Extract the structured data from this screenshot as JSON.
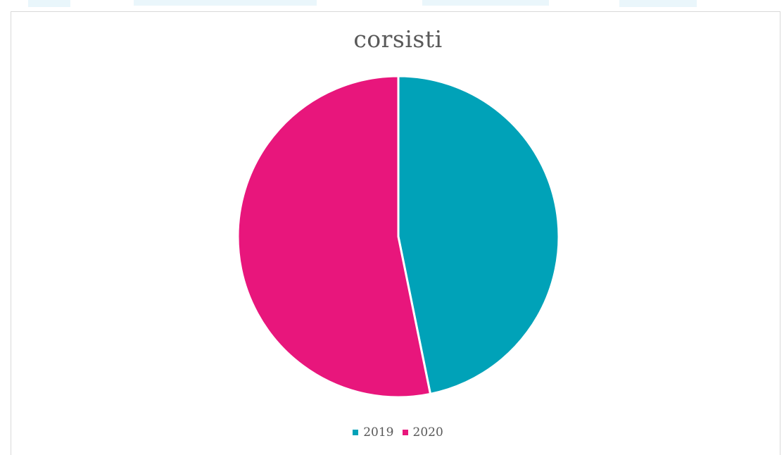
{
  "chart_data": {
    "type": "pie",
    "title": "corsisti",
    "categories": [
      "2019",
      "2020"
    ],
    "values": [
      46.8,
      53.2
    ],
    "colors": [
      "#00A2B8",
      "#E8167C"
    ],
    "legend_position": "bottom",
    "start_angle_deg": 0
  }
}
